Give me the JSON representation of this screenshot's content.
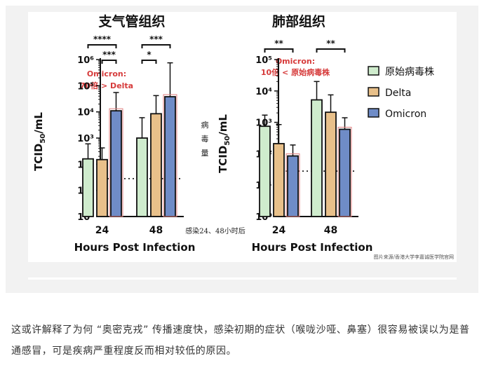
{
  "figure": {
    "source_note": "图片来源/香港大学李嘉诚医学院官网",
    "side_label_chars": [
      "病",
      "毒",
      "量"
    ],
    "time_note": "感染24、48小时后"
  },
  "chart_data": [
    {
      "type": "bar",
      "title": "支气管组织",
      "xlabel": "Hours Post Infection",
      "ylabel": "TCID50/mL",
      "yscale": "log",
      "ylim": [
        1,
        1000000
      ],
      "yticks": [
        "10⁰",
        "10¹",
        "10²",
        "10³",
        "10⁴",
        "10⁵",
        "10⁶"
      ],
      "categories": [
        "24",
        "48"
      ],
      "series": [
        {
          "name": "原始病毒株",
          "values": [
            160,
            1000
          ],
          "errors_upper": [
            600,
            6000
          ]
        },
        {
          "name": "Delta",
          "values": [
            150,
            8500
          ],
          "errors_upper": [
            420,
            42000
          ]
        },
        {
          "name": "Omicron",
          "values": [
            11000,
            38000
          ],
          "errors_upper": [
            55000,
            750000
          ]
        }
      ],
      "detection_limit": 28,
      "annotation": {
        "line1": "Omicron:",
        "line2": "70倍 > Delta"
      },
      "significance": [
        {
          "label": "****",
          "from_category": 0,
          "from_series": 0,
          "to_category": 0,
          "to_series": 2
        },
        {
          "label": "***",
          "from_category": 0,
          "from_series": 1,
          "to_category": 0,
          "to_series": 2
        },
        {
          "label": "***",
          "from_category": 1,
          "from_series": 0,
          "to_category": 1,
          "to_series": 2
        },
        {
          "label": "*",
          "from_category": 1,
          "from_series": 0,
          "to_category": 1,
          "to_series": 1
        }
      ],
      "highlight": [
        {
          "category": 0,
          "series": 2
        },
        {
          "category": 1,
          "series": 2
        }
      ]
    },
    {
      "type": "bar",
      "title": "肺部组织",
      "xlabel": "Hours Post Infection",
      "ylabel": "TCID50/mL",
      "yscale": "log",
      "ylim": [
        1,
        100000
      ],
      "yticks": [
        "10⁰",
        "10¹",
        "10²",
        "10³",
        "10⁴",
        "10⁵"
      ],
      "categories": [
        "24",
        "48"
      ],
      "series": [
        {
          "name": "原始病毒株",
          "values": [
            750,
            5200
          ],
          "errors_upper": [
            1700,
            20000
          ]
        },
        {
          "name": "Delta",
          "values": [
            210,
            2100
          ],
          "errors_upper": [
            850,
            7500
          ]
        },
        {
          "name": "Omicron",
          "values": [
            85,
            600
          ],
          "errors_upper": [
            190,
            1400
          ]
        }
      ],
      "detection_limit": 28,
      "annotation": {
        "line1": "Omicron:",
        "line2": "10倍 < 原始病毒株"
      },
      "significance": [
        {
          "label": "**",
          "from_category": 0,
          "from_series": 0,
          "to_category": 0,
          "to_series": 2
        },
        {
          "label": "**",
          "from_category": 1,
          "from_series": 0,
          "to_category": 1,
          "to_series": 2
        }
      ],
      "highlight": [
        {
          "category": 0,
          "series": 2
        },
        {
          "category": 1,
          "series": 2
        }
      ]
    }
  ],
  "legend": {
    "items": [
      {
        "label": "原始病毒株",
        "color": "#cfeccd"
      },
      {
        "label": "Delta",
        "color": "#e8c08a"
      },
      {
        "label": "Omicron",
        "color": "#6f8cc7"
      }
    ]
  },
  "colors": {
    "original": "#cfeccd",
    "delta": "#e8c08a",
    "omicron": "#6f8cc7",
    "annotation": "#d63b3b",
    "highlight": "#e07f7f"
  },
  "caption": "这或许解释了为何 “奥密克戎” 传播速度快，感染初期的症状（喉咙沙哑、鼻塞）很容易被误以为是普通感冒，可是疾病严重程度反而相对较低的原因。"
}
